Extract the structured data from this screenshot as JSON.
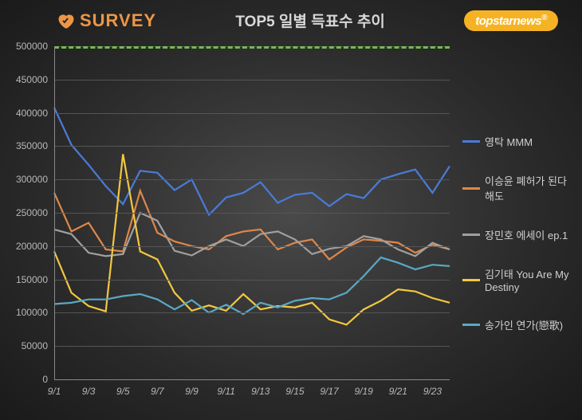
{
  "header": {
    "survey_text": "SURVEY",
    "title": "TOP5 일별 득표수 추이",
    "topstar": "topstarnews"
  },
  "chart": {
    "type": "line",
    "background": "radial-gradient(#4a4a4a,#1a1a1a)",
    "ylim": [
      0,
      500000
    ],
    "ytick_step": 50000,
    "yticks": [
      0,
      50000,
      100000,
      150000,
      200000,
      250000,
      300000,
      350000,
      400000,
      450000,
      500000
    ],
    "xlabels": [
      "9/1",
      "9/3",
      "9/5",
      "9/7",
      "9/9",
      "9/11",
      "9/13",
      "9/15",
      "9/17",
      "9/19",
      "9/21",
      "9/23"
    ],
    "x_count": 24,
    "target_line_value": 500000,
    "target_line_color": "#6fbf4b",
    "grid_color": "#555555",
    "axis_color": "#888888",
    "label_color": "#b8b8b8",
    "label_fontsize": 12,
    "line_width": 2.2,
    "series": [
      {
        "name": "영탁 MMM",
        "color": "#4a7bd8",
        "values": [
          408000,
          352000,
          322000,
          290000,
          263000,
          313000,
          310000,
          284000,
          300000,
          247000,
          273000,
          280000,
          296000,
          265000,
          277000,
          280000,
          260000,
          278000,
          272000,
          300000,
          308000,
          315000,
          280000,
          320000
        ]
      },
      {
        "name": "이승윤 폐허가 된다 해도",
        "color": "#e08748",
        "values": [
          280000,
          222000,
          235000,
          195000,
          192000,
          283000,
          220000,
          207000,
          200000,
          195000,
          215000,
          222000,
          225000,
          195000,
          205000,
          210000,
          180000,
          198000,
          210000,
          208000,
          205000,
          190000,
          202000,
          195000
        ]
      },
      {
        "name": "장민호 에세이 ep.1",
        "color": "#a0a0a0",
        "values": [
          225000,
          218000,
          190000,
          185000,
          188000,
          250000,
          238000,
          193000,
          186000,
          200000,
          210000,
          200000,
          218000,
          222000,
          210000,
          188000,
          196000,
          200000,
          215000,
          210000,
          195000,
          185000,
          205000,
          195000
        ]
      },
      {
        "name": "김기태 You Are My Destiny",
        "color": "#f2c83f",
        "values": [
          192000,
          130000,
          110000,
          102000,
          338000,
          192000,
          180000,
          130000,
          103000,
          111000,
          103000,
          128000,
          105000,
          110000,
          108000,
          115000,
          90000,
          82000,
          105000,
          118000,
          135000,
          132000,
          122000,
          115000
        ]
      },
      {
        "name": "송가인 연가(戀歌)",
        "color": "#5aa8c4",
        "values": [
          113000,
          115000,
          120000,
          120000,
          125000,
          128000,
          120000,
          105000,
          119000,
          100000,
          112000,
          98000,
          115000,
          108000,
          118000,
          122000,
          120000,
          130000,
          155000,
          183000,
          175000,
          165000,
          172000,
          170000
        ]
      }
    ]
  },
  "colors": {
    "survey_brand": "#ed9645",
    "topstar_bg": "#f5b324"
  }
}
